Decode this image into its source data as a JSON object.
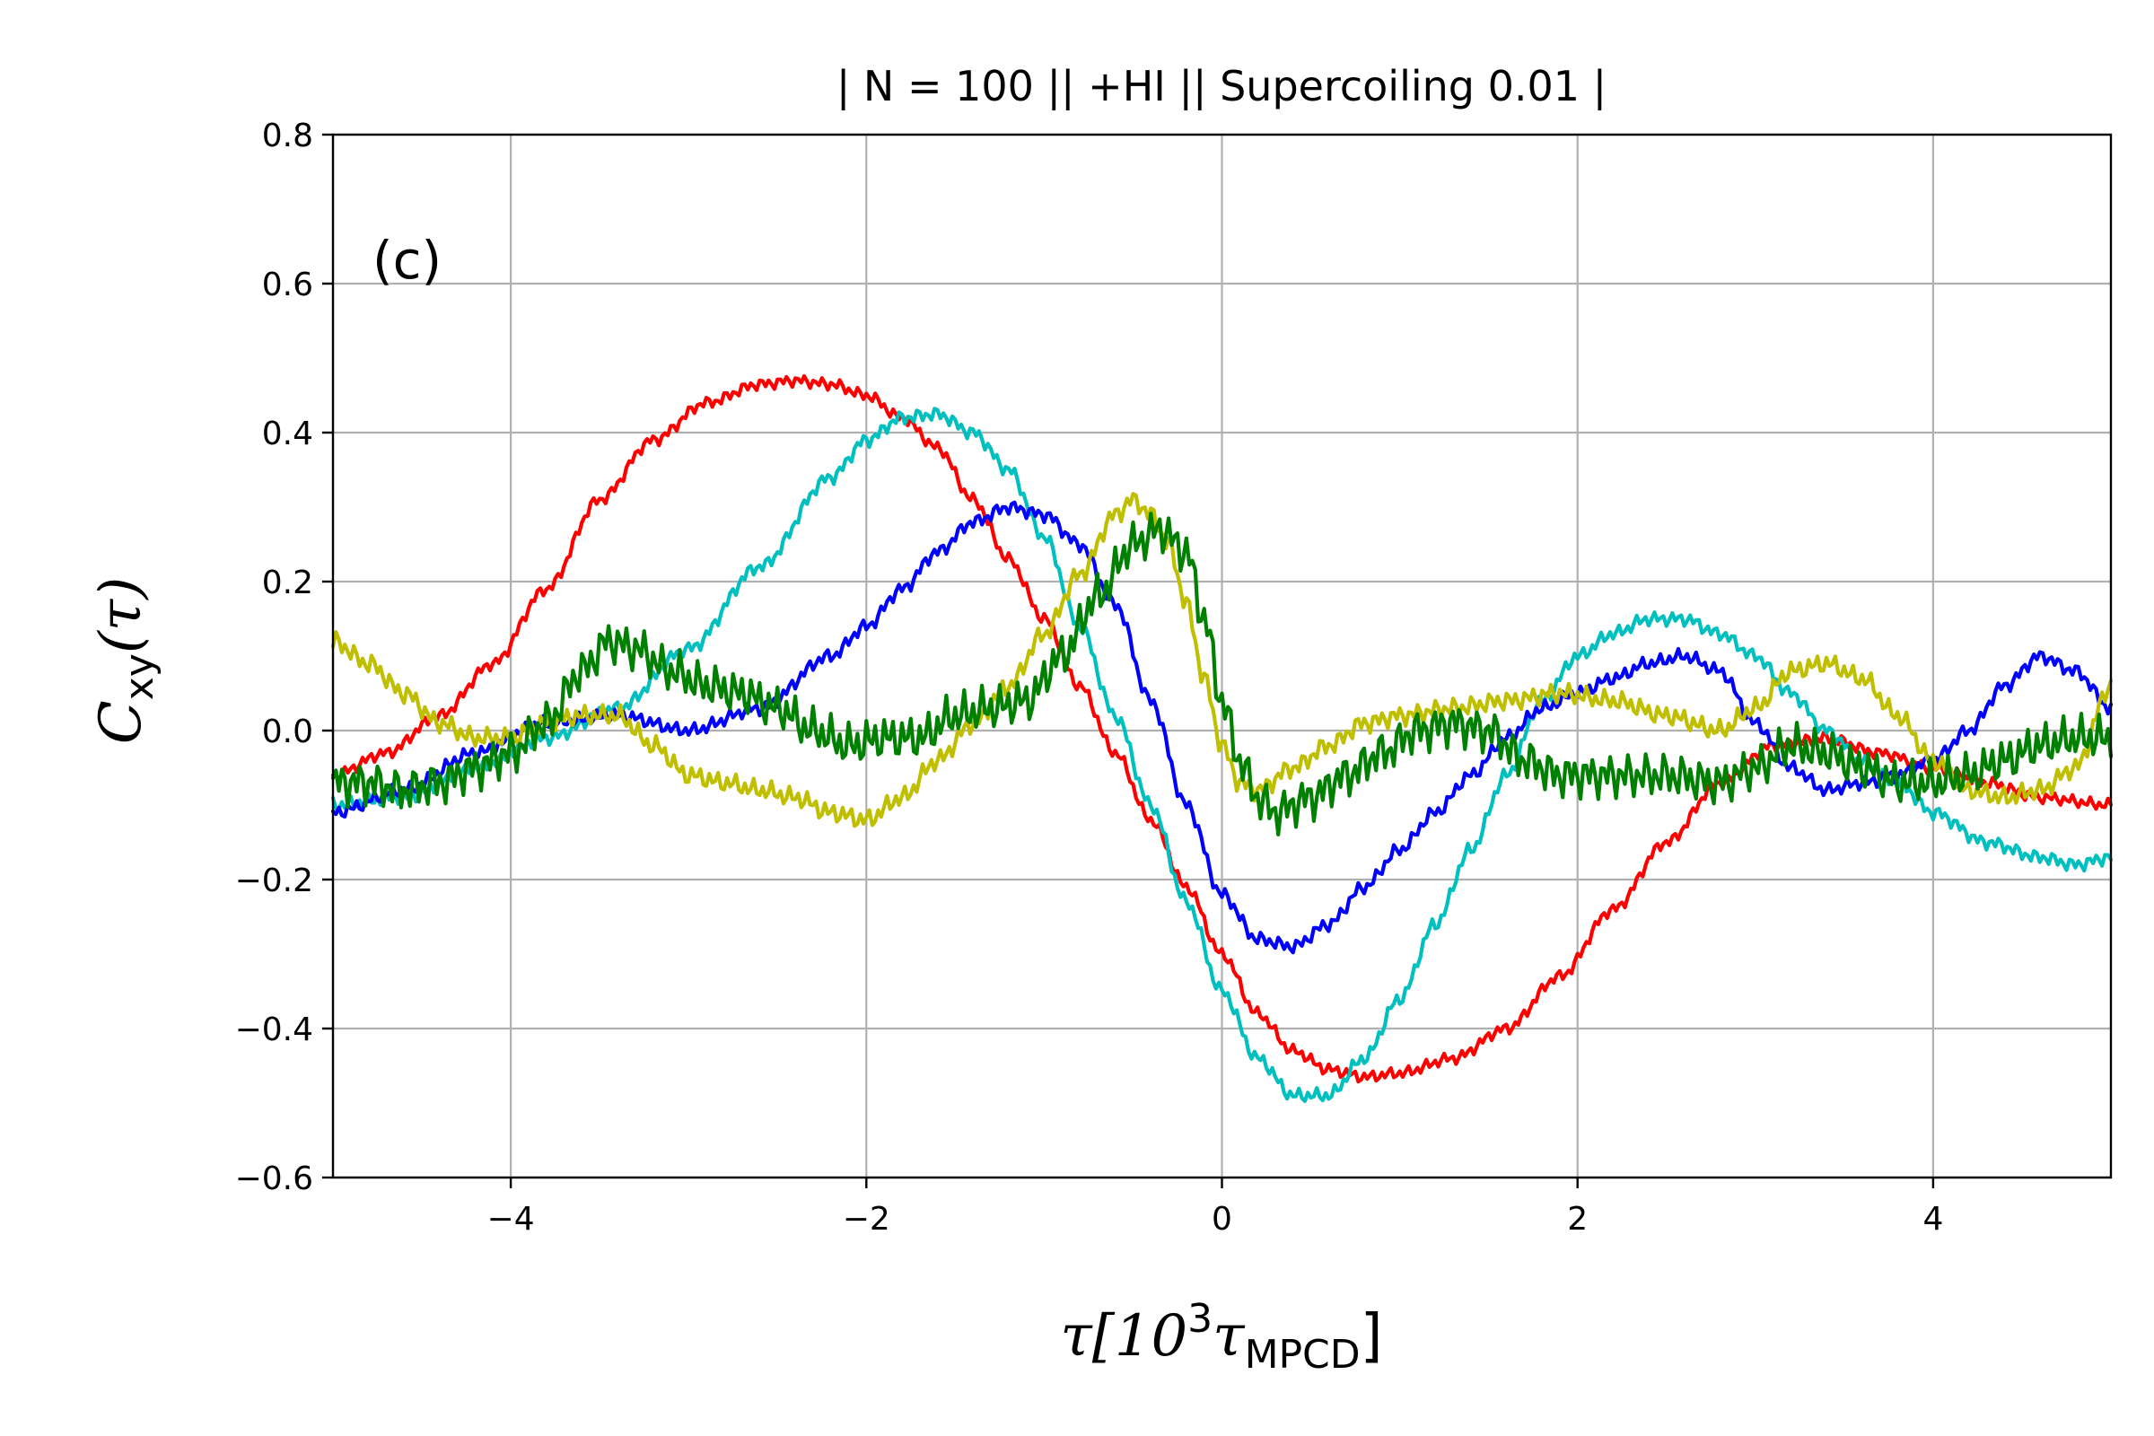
{
  "chart_data": {
    "type": "line",
    "title": "| N = 100 || +HI || Supercoiling 0.01 |",
    "annotation": "(c)",
    "xlabel": {
      "main": "τ[10",
      "sup": "3",
      "mid": "τ",
      "sub": "MPCD",
      "end": "]"
    },
    "ylabel": {
      "main": "C",
      "sub": "xy",
      "paren": "(τ)"
    },
    "xlim": [
      -5,
      5
    ],
    "ylim": [
      -0.6,
      0.8
    ],
    "xticks": [
      -4,
      -2,
      0,
      2,
      4
    ],
    "xtick_labels": [
      "−4",
      "−2",
      "0",
      "2",
      "4"
    ],
    "yticks": [
      -0.6,
      -0.4,
      -0.2,
      0.0,
      0.2,
      0.4,
      0.6,
      0.8
    ],
    "ytick_labels": [
      "−0.6",
      "−0.4",
      "−0.2",
      "0.0",
      "0.2",
      "0.4",
      "0.6",
      "0.8"
    ],
    "grid": true,
    "series": [
      {
        "name": "red",
        "color": "#ff0000",
        "noise": 0.006,
        "x": [
          -5,
          -4.7,
          -4.4,
          -4.1,
          -3.8,
          -3.5,
          -3.2,
          -2.9,
          -2.6,
          -2.4,
          -2.2,
          -2.0,
          -1.8,
          -1.6,
          -1.4,
          -1.2,
          -1.0,
          -0.8,
          -0.6,
          -0.4,
          -0.2,
          0,
          0.2,
          0.4,
          0.6,
          0.8,
          1.0,
          1.3,
          1.6,
          1.9,
          2.2,
          2.5,
          2.8,
          3.1,
          3.4,
          3.7,
          4.0,
          4.3,
          4.6,
          5.0
        ],
        "y": [
          -0.06,
          -0.03,
          0.02,
          0.09,
          0.19,
          0.31,
          0.39,
          0.44,
          0.465,
          0.47,
          0.465,
          0.45,
          0.42,
          0.38,
          0.31,
          0.23,
          0.15,
          0.06,
          -0.03,
          -0.12,
          -0.21,
          -0.3,
          -0.38,
          -0.43,
          -0.455,
          -0.465,
          -0.46,
          -0.44,
          -0.4,
          -0.33,
          -0.24,
          -0.15,
          -0.07,
          -0.02,
          -0.01,
          -0.03,
          -0.05,
          -0.07,
          -0.09,
          -0.1
        ]
      },
      {
        "name": "cyan",
        "color": "#00bfbf",
        "noise": 0.007,
        "x": [
          -5,
          -4.6,
          -4.2,
          -3.8,
          -3.4,
          -3.0,
          -2.6,
          -2.2,
          -2.0,
          -1.8,
          -1.6,
          -1.4,
          -1.2,
          -1.0,
          -0.8,
          -0.6,
          -0.4,
          -0.2,
          0,
          0.2,
          0.4,
          0.6,
          0.8,
          1.0,
          1.2,
          1.4,
          1.6,
          1.8,
          2.0,
          2.2,
          2.4,
          2.6,
          2.8,
          3.0,
          3.2,
          3.4,
          3.6,
          3.8,
          4.0,
          4.3,
          4.6,
          4.8,
          5.0
        ],
        "y": [
          -0.1,
          -0.09,
          -0.05,
          -0.01,
          0.03,
          0.11,
          0.22,
          0.34,
          0.39,
          0.42,
          0.425,
          0.4,
          0.35,
          0.26,
          0.14,
          0.02,
          -0.1,
          -0.23,
          -0.35,
          -0.44,
          -0.49,
          -0.49,
          -0.44,
          -0.36,
          -0.26,
          -0.16,
          -0.06,
          0.04,
          0.1,
          0.13,
          0.15,
          0.15,
          0.13,
          0.1,
          0.05,
          0.0,
          -0.04,
          -0.07,
          -0.11,
          -0.15,
          -0.17,
          -0.18,
          -0.17
        ]
      },
      {
        "name": "blue",
        "color": "#0000ff",
        "noise": 0.007,
        "x": [
          -5,
          -4.6,
          -4.2,
          -3.8,
          -3.4,
          -3.0,
          -2.6,
          -2.2,
          -2.0,
          -1.8,
          -1.6,
          -1.4,
          -1.2,
          -1.0,
          -0.8,
          -0.6,
          -0.4,
          -0.2,
          0,
          0.2,
          0.4,
          0.6,
          0.8,
          1.0,
          1.2,
          1.4,
          1.6,
          1.8,
          2.0,
          2.2,
          2.4,
          2.6,
          2.8,
          3.0,
          3.2,
          3.4,
          3.6,
          3.8,
          4.0,
          4.2,
          4.4,
          4.6,
          4.8,
          5.0
        ],
        "y": [
          -0.11,
          -0.08,
          -0.03,
          0.01,
          0.02,
          0.0,
          0.03,
          0.1,
          0.14,
          0.19,
          0.24,
          0.28,
          0.3,
          0.29,
          0.25,
          0.17,
          0.04,
          -0.1,
          -0.22,
          -0.28,
          -0.29,
          -0.26,
          -0.21,
          -0.16,
          -0.11,
          -0.06,
          -0.01,
          0.03,
          0.05,
          0.07,
          0.09,
          0.1,
          0.08,
          0.01,
          -0.05,
          -0.08,
          -0.07,
          -0.06,
          -0.04,
          0.0,
          0.06,
          0.1,
          0.08,
          0.03
        ]
      },
      {
        "name": "yellow",
        "color": "#bfbf00",
        "noise": 0.01,
        "x": [
          -5,
          -4.8,
          -4.6,
          -4.4,
          -4.2,
          -4.0,
          -3.8,
          -3.6,
          -3.4,
          -3.2,
          -3.0,
          -2.8,
          -2.6,
          -2.4,
          -2.2,
          -2.0,
          -1.8,
          -1.6,
          -1.4,
          -1.2,
          -1.0,
          -0.8,
          -0.6,
          -0.5,
          -0.4,
          -0.3,
          -0.2,
          -0.1,
          0,
          0.1,
          0.2,
          0.4,
          0.6,
          0.8,
          1.0,
          1.3,
          1.6,
          1.9,
          2.2,
          2.5,
          2.8,
          3.0,
          3.2,
          3.4,
          3.6,
          3.8,
          4.0,
          4.2,
          4.4,
          4.6,
          4.8,
          5.0
        ],
        "y": [
          0.12,
          0.09,
          0.05,
          0.01,
          -0.01,
          -0.01,
          0.01,
          0.02,
          0.02,
          -0.02,
          -0.06,
          -0.07,
          -0.08,
          -0.09,
          -0.11,
          -0.12,
          -0.09,
          -0.04,
          0.01,
          0.06,
          0.13,
          0.21,
          0.29,
          0.31,
          0.29,
          0.25,
          0.17,
          0.07,
          -0.02,
          -0.07,
          -0.08,
          -0.05,
          -0.02,
          0.01,
          0.02,
          0.03,
          0.04,
          0.05,
          0.04,
          0.02,
          0.0,
          0.03,
          0.08,
          0.09,
          0.07,
          0.02,
          -0.04,
          -0.08,
          -0.09,
          -0.08,
          -0.05,
          0.06
        ]
      },
      {
        "name": "green",
        "color": "#008000",
        "noise": 0.022,
        "x": [
          -5,
          -4.8,
          -4.6,
          -4.4,
          -4.2,
          -4.0,
          -3.8,
          -3.6,
          -3.45,
          -3.3,
          -3.1,
          -2.9,
          -2.7,
          -2.5,
          -2.3,
          -2.1,
          -1.9,
          -1.7,
          -1.5,
          -1.3,
          -1.1,
          -0.9,
          -0.7,
          -0.5,
          -0.35,
          -0.2,
          -0.1,
          0,
          0.1,
          0.2,
          0.3,
          0.5,
          0.7,
          0.9,
          1.1,
          1.3,
          1.5,
          1.7,
          1.9,
          2.2,
          2.5,
          2.8,
          3.0,
          3.2,
          3.4,
          3.6,
          3.8,
          4.0,
          4.2,
          4.4,
          4.6,
          4.8,
          5.0
        ],
        "y": [
          -0.07,
          -0.07,
          -0.08,
          -0.07,
          -0.05,
          -0.03,
          0.01,
          0.08,
          0.12,
          0.11,
          0.08,
          0.06,
          0.05,
          0.03,
          0.0,
          -0.02,
          -0.01,
          -0.01,
          0.02,
          0.03,
          0.04,
          0.1,
          0.18,
          0.25,
          0.27,
          0.24,
          0.15,
          0.04,
          -0.04,
          -0.09,
          -0.11,
          -0.09,
          -0.06,
          -0.03,
          0.0,
          0.01,
          0.0,
          -0.04,
          -0.06,
          -0.06,
          -0.06,
          -0.07,
          -0.05,
          -0.02,
          -0.03,
          -0.05,
          -0.07,
          -0.07,
          -0.06,
          -0.04,
          -0.02,
          -0.01,
          -0.01
        ]
      }
    ]
  }
}
